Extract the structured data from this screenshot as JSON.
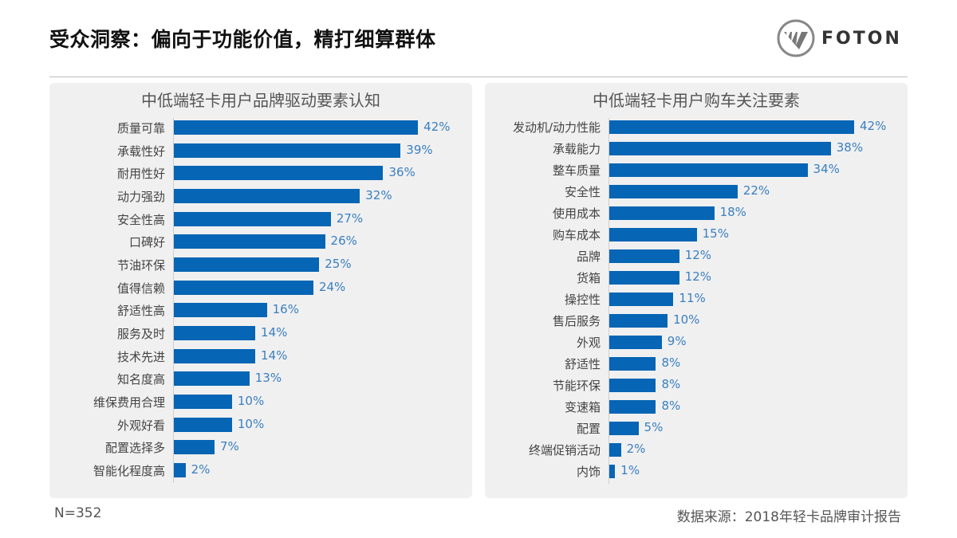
{
  "header": {
    "title": "受众洞察：偏向于功能价值，精打细算群体",
    "logo_text": "FOTON"
  },
  "footer": {
    "sample": "N=352",
    "source": "数据来源：2018年轻卡品牌审计报告"
  },
  "colors": {
    "bar": "#0665b4",
    "value_label": "#3a7fc1",
    "panel": "#f0f0f0"
  },
  "chart_data": [
    {
      "type": "bar",
      "orientation": "horizontal",
      "title": "中低端轻卡用户品牌驱动要素认知",
      "unit": "%",
      "categories": [
        "质量可靠",
        "承载性好",
        "耐用性好",
        "动力强劲",
        "安全性高",
        "口碑好",
        "节油环保",
        "值得信赖",
        "舒适性高",
        "服务及时",
        "技术先进",
        "知名度高",
        "维保费用合理",
        "外观好看",
        "配置选择多",
        "智能化程度高"
      ],
      "values": [
        42,
        39,
        36,
        32,
        27,
        26,
        25,
        24,
        16,
        14,
        14,
        13,
        10,
        10,
        7,
        2
      ]
    },
    {
      "type": "bar",
      "orientation": "horizontal",
      "title": "中低端轻卡用户购车关注要素",
      "unit": "%",
      "categories": [
        "发动机/动力性能",
        "承载能力",
        "整车质量",
        "安全性",
        "使用成本",
        "购车成本",
        "品牌",
        "货箱",
        "操控性",
        "售后服务",
        "外观",
        "舒适性",
        "节能环保",
        "变速箱",
        "配置",
        "终端促销活动",
        "内饰"
      ],
      "values": [
        42,
        38,
        34,
        22,
        18,
        15,
        12,
        12,
        11,
        10,
        9,
        8,
        8,
        8,
        5,
        2,
        1
      ]
    }
  ]
}
